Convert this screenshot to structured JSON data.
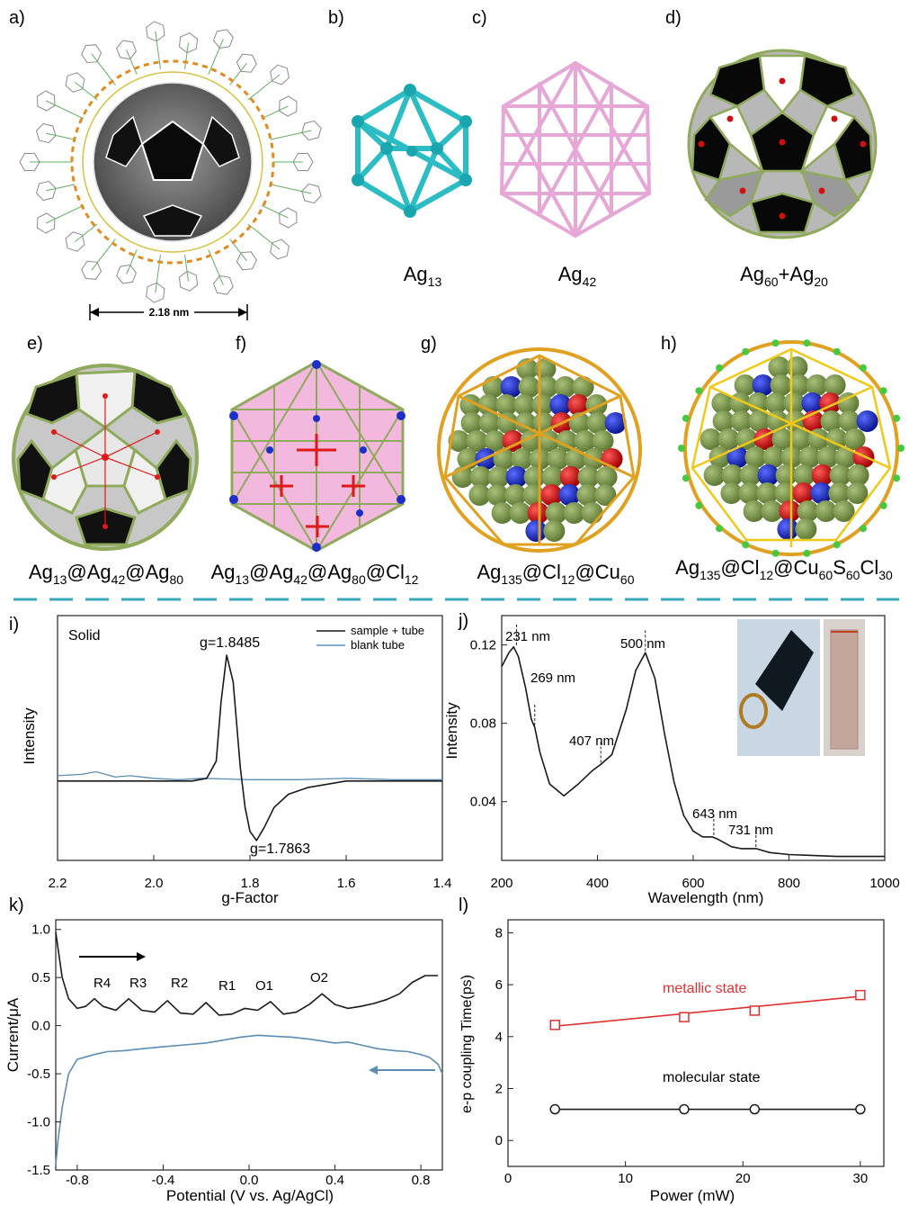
{
  "panels": {
    "a": {
      "label": "a)",
      "scale_text": "2.18 nm"
    },
    "b": {
      "label": "b)",
      "formula": {
        "base": "Ag",
        "sub": "13"
      }
    },
    "c": {
      "label": "c)",
      "formula": {
        "base": "Ag",
        "sub": "42"
      }
    },
    "d": {
      "label": "d)",
      "formula_parts": [
        {
          "t": "Ag"
        },
        {
          "s": "60"
        },
        {
          "t": "+Ag"
        },
        {
          "s": "20"
        }
      ]
    },
    "e": {
      "label": "e)",
      "formula_parts": [
        {
          "t": "Ag"
        },
        {
          "s": "13"
        },
        {
          "t": "@Ag"
        },
        {
          "s": "42"
        },
        {
          "t": "@Ag"
        },
        {
          "s": "80"
        }
      ]
    },
    "f": {
      "label": "f)",
      "formula_parts": [
        {
          "t": "Ag"
        },
        {
          "s": "13"
        },
        {
          "t": "@Ag"
        },
        {
          "s": "42"
        },
        {
          "t": "@Ag"
        },
        {
          "s": "80"
        },
        {
          "t": "@Cl"
        },
        {
          "s": "12"
        }
      ]
    },
    "g": {
      "label": "g)",
      "formula_parts": [
        {
          "t": "Ag"
        },
        {
          "s": "135"
        },
        {
          "t": "@Cl"
        },
        {
          "s": "12"
        },
        {
          "t": "@Cu"
        },
        {
          "s": "60"
        }
      ]
    },
    "h": {
      "label": "h)",
      "formula_parts": [
        {
          "t": "Ag"
        },
        {
          "s": "135"
        },
        {
          "t": "@Cl"
        },
        {
          "s": "12"
        },
        {
          "t": "@Cu"
        },
        {
          "s": "60"
        },
        {
          "t": "S"
        },
        {
          "s": "60"
        },
        {
          "t": "Cl"
        },
        {
          "s": "30"
        }
      ]
    }
  },
  "colors": {
    "divider": "#3aa9b8",
    "cyan": "#2bbcc4",
    "pink": "#e6a6d6",
    "olive": "#8faa5a",
    "red": "#e01818",
    "blue": "#1e2fc8",
    "gold": "#e0a020",
    "green": "#46c840",
    "black_line": "#1a1a1a",
    "blue_line": "#5b8db5",
    "red_line": "#e03030"
  },
  "chart_data": [
    {
      "panel": "i)",
      "type": "line",
      "annotation_text": "Solid",
      "xlabel": "g-Factor",
      "ylabel": "Intensity",
      "xlim": [
        2.2,
        1.4
      ],
      "xticks": [
        "2.2",
        "2.0",
        "1.8",
        "1.6",
        "1.4"
      ],
      "series": [
        {
          "name": "sample + tube",
          "color": "#1a1a1a",
          "x": [
            2.2,
            2.0,
            1.92,
            1.89,
            1.87,
            1.86,
            1.8485,
            1.835,
            1.82,
            1.81,
            1.8,
            1.7863,
            1.77,
            1.75,
            1.72,
            1.68,
            1.6,
            1.4
          ],
          "y": [
            0,
            0,
            0,
            0.02,
            0.15,
            0.6,
            0.95,
            0.75,
            0.1,
            -0.2,
            -0.38,
            -0.45,
            -0.35,
            -0.2,
            -0.1,
            -0.05,
            0,
            0
          ]
        },
        {
          "name": "blank tube",
          "color": "#5b8db5",
          "x": [
            2.2,
            2.15,
            2.12,
            2.1,
            2.08,
            2.05,
            2.0,
            1.95,
            1.9,
            1.8,
            1.7,
            1.6,
            1.5,
            1.4
          ],
          "y": [
            0.04,
            0.05,
            0.07,
            0.05,
            0.03,
            0.04,
            0.02,
            0.01,
            0.02,
            0.01,
            0.01,
            0.02,
            0.01,
            0.01
          ]
        }
      ],
      "annotations": [
        "g=1.8485",
        "g=1.7863"
      ]
    },
    {
      "panel": "j)",
      "type": "line",
      "xlabel": "Wavelength (nm)",
      "ylabel": "Intensity",
      "xlim": [
        200,
        1000
      ],
      "ylim": [
        0.01,
        0.135
      ],
      "xticks": [
        "200",
        "400",
        "600",
        "800",
        "1000"
      ],
      "yticks": [
        "0.04",
        "0.08",
        "0.12"
      ],
      "series": [
        {
          "color": "#1a1a1a",
          "x": [
            200,
            215,
            225,
            235,
            250,
            262,
            269,
            280,
            300,
            330,
            360,
            390,
            407,
            430,
            460,
            480,
            500,
            520,
            540,
            560,
            580,
            600,
            620,
            640,
            650,
            665,
            680,
            700,
            731,
            760,
            800,
            900,
            1000
          ],
          "y": [
            0.109,
            0.116,
            0.119,
            0.114,
            0.098,
            0.082,
            0.078,
            0.065,
            0.049,
            0.043,
            0.049,
            0.056,
            0.059,
            0.064,
            0.087,
            0.107,
            0.116,
            0.103,
            0.075,
            0.05,
            0.033,
            0.025,
            0.022,
            0.022,
            0.021,
            0.019,
            0.017,
            0.016,
            0.016,
            0.014,
            0.013,
            0.012,
            0.012
          ]
        }
      ],
      "annotations": [
        "231 nm",
        "269 nm",
        "407 nm",
        "500 nm",
        "643 nm",
        "731 nm"
      ]
    },
    {
      "panel": "k)",
      "type": "line",
      "xlabel": "Potential (V vs. Ag/AgCl)",
      "ylabel": "Current/μA",
      "xlim": [
        -0.9,
        0.9
      ],
      "ylim": [
        -1.5,
        1.1
      ],
      "xticks": [
        "-0.8",
        "-0.4",
        "0.0",
        "0.4",
        "0.8"
      ],
      "yticks": [
        "-1.5",
        "-1.0",
        "-0.5",
        "0.0",
        "0.5",
        "1.0"
      ],
      "series": [
        {
          "name": "forward",
          "color": "#1a1a1a",
          "x": [
            -0.9,
            -0.87,
            -0.84,
            -0.8,
            -0.76,
            -0.72,
            -0.68,
            -0.62,
            -0.56,
            -0.5,
            -0.44,
            -0.38,
            -0.32,
            -0.26,
            -0.2,
            -0.14,
            -0.08,
            -0.02,
            0.04,
            0.1,
            0.16,
            0.22,
            0.28,
            0.34,
            0.4,
            0.46,
            0.52,
            0.58,
            0.64,
            0.7,
            0.76,
            0.82,
            0.88
          ],
          "y": [
            0.97,
            0.5,
            0.28,
            0.18,
            0.2,
            0.28,
            0.2,
            0.16,
            0.28,
            0.16,
            0.14,
            0.26,
            0.13,
            0.12,
            0.24,
            0.11,
            0.12,
            0.18,
            0.16,
            0.25,
            0.12,
            0.14,
            0.22,
            0.33,
            0.22,
            0.18,
            0.2,
            0.23,
            0.27,
            0.33,
            0.45,
            0.52,
            0.52
          ]
        },
        {
          "name": "reverse",
          "color": "#5b8db5",
          "x": [
            0.9,
            0.88,
            0.84,
            0.8,
            0.74,
            0.68,
            0.6,
            0.52,
            0.46,
            0.4,
            0.34,
            0.28,
            0.2,
            0.12,
            0.04,
            -0.04,
            -0.12,
            -0.2,
            -0.3,
            -0.4,
            -0.5,
            -0.58,
            -0.66,
            -0.72,
            -0.8,
            -0.84,
            -0.87,
            -0.89,
            -0.9
          ],
          "y": [
            -0.5,
            -0.4,
            -0.33,
            -0.3,
            -0.27,
            -0.26,
            -0.24,
            -0.2,
            -0.17,
            -0.18,
            -0.16,
            -0.14,
            -0.12,
            -0.11,
            -0.1,
            -0.12,
            -0.15,
            -0.18,
            -0.2,
            -0.22,
            -0.24,
            -0.26,
            -0.27,
            -0.3,
            -0.35,
            -0.5,
            -0.85,
            -1.2,
            -1.45
          ]
        }
      ],
      "annotations": [
        "R4",
        "R3",
        "R2",
        "R1",
        "O1",
        "O2"
      ]
    },
    {
      "panel": "l)",
      "type": "scatter",
      "xlabel": "Power (mW)",
      "ylabel": "e-p coupling Time(ps)",
      "xlim": [
        0,
        32
      ],
      "ylim": [
        -1,
        8.5
      ],
      "xticks": [
        "0",
        "10",
        "20",
        "30"
      ],
      "yticks": [
        "0",
        "2",
        "4",
        "6",
        "8"
      ],
      "series": [
        {
          "name": "metallic state",
          "color": "#e03030",
          "x": [
            4,
            15,
            21,
            30
          ],
          "y": [
            4.45,
            4.75,
            5.0,
            5.6
          ],
          "fit": [
            4.4,
            5.55
          ]
        },
        {
          "name": "molecular state",
          "color": "#1a1a1a",
          "x": [
            4,
            15,
            21,
            30
          ],
          "y": [
            1.2,
            1.2,
            1.2,
            1.2
          ],
          "fit": [
            1.2,
            1.2
          ]
        }
      ]
    }
  ]
}
